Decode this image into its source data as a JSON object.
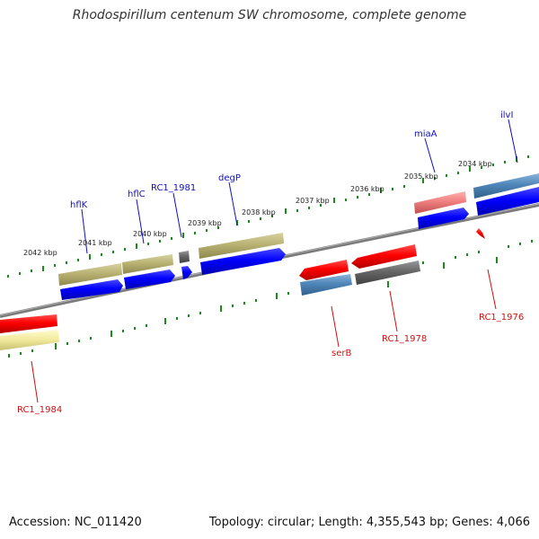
{
  "title": "Rhodospirillum centenum SW chromosome, complete genome",
  "footer": {
    "accession": "Accession: NC_011420",
    "summary": "Topology: circular; Length: 4,355,543 bp; Genes: 4,066"
  },
  "colors": {
    "background": "#ffffff",
    "backbone": "#808080",
    "scale_ticks": "#1a8a1a",
    "forward_label": "#1010c0",
    "reverse_label": "#d01010"
  },
  "scale_labels": [
    "2042 kbp",
    "2041 kbp",
    "2040 kbp",
    "2039 kbp",
    "2038 kbp",
    "2037 kbp",
    "2036 kbp",
    "2035 kbp",
    "2034 kbp"
  ],
  "gene_labels": {
    "forward": [
      "hflK",
      "hflC",
      "RC1_1981",
      "degP",
      "miaA",
      "ilvI"
    ],
    "reverse": [
      "RC1_1984",
      "serB",
      "RC1_1978",
      "RC1_1976"
    ]
  }
}
